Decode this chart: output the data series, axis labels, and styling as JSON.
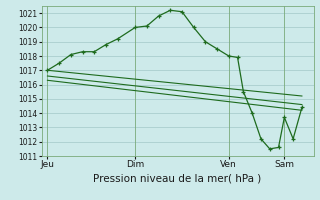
{
  "bg_color": "#cdeaea",
  "grid_color": "#aacece",
  "line_color": "#1e6b1e",
  "xlabel": "Pression niveau de la mer( hPa )",
  "ylim": [
    1011,
    1021.5
  ],
  "yticks": [
    1011,
    1012,
    1013,
    1014,
    1015,
    1016,
    1017,
    1018,
    1019,
    1020,
    1021
  ],
  "xtick_labels": [
    "Jeu",
    "Dim",
    "Ven",
    "Sam"
  ],
  "xtick_positions": [
    0,
    3.0,
    6.2,
    8.1
  ],
  "vline_positions": [
    0,
    3.0,
    6.2,
    8.1
  ],
  "main_x": [
    0,
    0.4,
    0.8,
    1.2,
    1.6,
    2.0,
    2.4,
    3.0,
    3.4,
    3.8,
    4.2,
    4.6,
    5.0,
    5.4,
    5.8,
    6.2,
    6.5,
    6.7,
    7.0,
    7.3,
    7.6,
    7.9,
    8.1,
    8.4,
    8.7
  ],
  "main_y": [
    1017.0,
    1017.5,
    1018.1,
    1018.3,
    1018.3,
    1018.8,
    1019.2,
    1020.0,
    1020.1,
    1020.8,
    1021.2,
    1021.1,
    1020.0,
    1019.0,
    1018.5,
    1018.0,
    1017.9,
    1015.5,
    1014.0,
    1012.2,
    1011.5,
    1011.6,
    1013.7,
    1012.2,
    1014.4
  ],
  "line2_x": [
    0,
    8.7
  ],
  "line2_y": [
    1017.0,
    1015.2
  ],
  "line3_x": [
    0,
    8.7
  ],
  "line3_y": [
    1016.6,
    1014.6
  ],
  "line4_x": [
    0,
    8.7
  ],
  "line4_y": [
    1016.3,
    1014.2
  ],
  "xlim": [
    -0.2,
    9.1
  ],
  "vline_color": "#7aaa7a",
  "spine_color": "#7aaa7a",
  "xlabel_fontsize": 7.5,
  "ytick_fontsize": 5.5,
  "xtick_fontsize": 6.5
}
